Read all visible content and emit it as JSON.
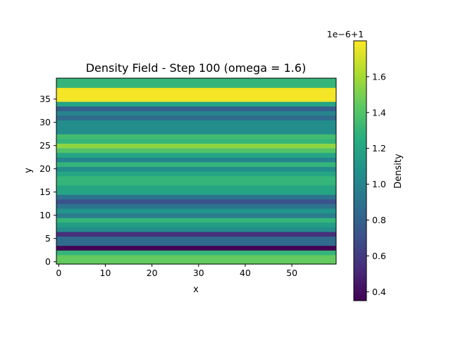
{
  "chart_data": {
    "type": "heatmap",
    "title": "Density Field - Step 100 (omega = 1.6)",
    "xlabel": "x",
    "ylabel": "y",
    "xlim": [
      -0.5,
      59.5
    ],
    "ylim": [
      -0.5,
      39.5
    ],
    "xticks": [
      0,
      10,
      20,
      30,
      40,
      50
    ],
    "xtick_labels": [
      "0",
      "10",
      "20",
      "30",
      "40",
      "50"
    ],
    "yticks": [
      0,
      5,
      10,
      15,
      20,
      25,
      30,
      35
    ],
    "ytick_labels": [
      "0",
      "5",
      "10",
      "15",
      "20",
      "25",
      "30",
      "35"
    ],
    "colormap": "viridis",
    "colorbar": {
      "label": "Density",
      "offset_text": "1e−6+1",
      "range": [
        0.35,
        1.8
      ],
      "ticks": [
        0.4,
        0.6,
        0.8,
        1.0,
        1.2,
        1.4,
        1.6
      ],
      "tick_labels": [
        "0.4",
        "0.6",
        "0.8",
        "1.0",
        "1.2",
        "1.4",
        "1.6"
      ]
    },
    "row_values_note": "density per row y=0..39 (constant across x), in units of 1e-6 offset from 1",
    "row_values": [
      1.45,
      1.45,
      1.3,
      0.35,
      0.85,
      0.85,
      0.55,
      1.05,
      1.15,
      1.3,
      0.95,
      1.1,
      0.9,
      0.72,
      0.9,
      1.2,
      1.2,
      1.3,
      1.3,
      1.2,
      1.05,
      1.3,
      1.0,
      1.2,
      1.4,
      1.55,
      1.3,
      1.35,
      1.05,
      1.05,
      1.05,
      0.85,
      1.0,
      0.78,
      1.2,
      1.78,
      1.78,
      1.78,
      1.3,
      1.3
    ]
  }
}
